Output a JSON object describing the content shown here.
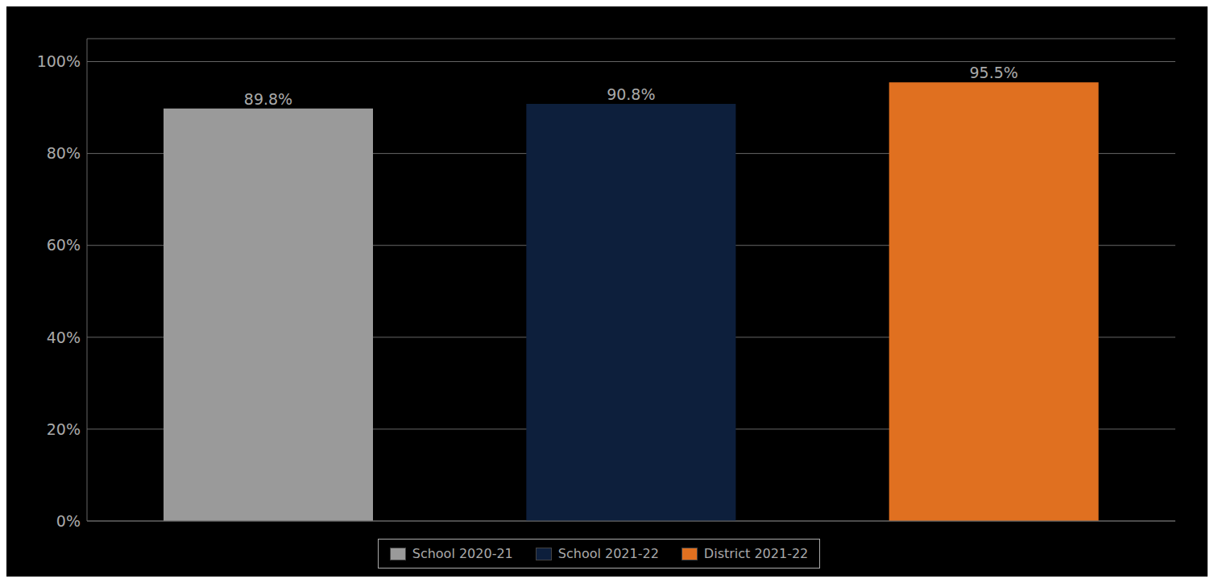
{
  "chart_data": {
    "type": "bar",
    "categories": [
      "School 2020-21",
      "School 2021-22",
      "District 2021-22"
    ],
    "values": [
      0.898,
      0.908,
      0.955
    ],
    "value_labels": [
      "89.8%",
      "90.8%",
      "95.5%"
    ],
    "colors": [
      "#9a9a9a",
      "#0d1f3c",
      "#e07020"
    ],
    "ylim": [
      0,
      1.05
    ],
    "yticks": [
      {
        "value": 0.0,
        "label": "0%"
      },
      {
        "value": 0.2,
        "label": "20%"
      },
      {
        "value": 0.4,
        "label": "40%"
      },
      {
        "value": 0.6,
        "label": "60%"
      },
      {
        "value": 0.8,
        "label": "80%"
      },
      {
        "value": 1.0,
        "label": "100%"
      }
    ],
    "grid": true,
    "legend": "bottom",
    "tick_labels": "y"
  }
}
